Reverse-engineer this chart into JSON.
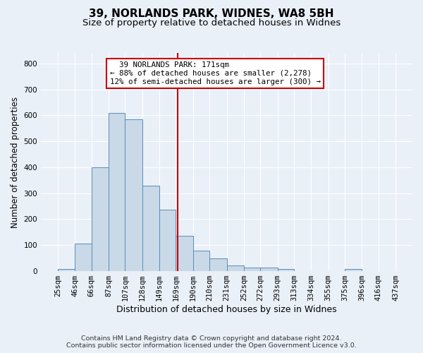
{
  "title1": "39, NORLANDS PARK, WIDNES, WA8 5BH",
  "title2": "Size of property relative to detached houses in Widnes",
  "xlabel": "Distribution of detached houses by size in Widnes",
  "ylabel": "Number of detached properties",
  "footer1": "Contains HM Land Registry data © Crown copyright and database right 2024.",
  "footer2": "Contains public sector information licensed under the Open Government Licence v3.0.",
  "bin_edges": [
    25,
    46,
    66,
    87,
    107,
    128,
    149,
    169,
    190,
    210,
    231,
    252,
    272,
    293,
    313,
    334,
    355,
    375,
    396,
    416,
    437
  ],
  "bar_heights": [
    8,
    105,
    400,
    610,
    585,
    328,
    238,
    135,
    78,
    50,
    22,
    15,
    15,
    8,
    0,
    0,
    0,
    8,
    0,
    0
  ],
  "bar_facecolor": "#c9d9e8",
  "bar_edgecolor": "#5b8db8",
  "property_size": 171,
  "vline_color": "#cc0000",
  "annotation_text": "  39 NORLANDS PARK: 171sqm\n← 88% of detached houses are smaller (2,278)\n12% of semi-detached houses are larger (300) →",
  "annotation_box_edgecolor": "#cc0000",
  "annotation_box_facecolor": "#ffffff",
  "ylim": [
    0,
    840
  ],
  "yticks": [
    0,
    100,
    200,
    300,
    400,
    500,
    600,
    700,
    800
  ],
  "background_color": "#eaf0f8",
  "grid_color": "#ffffff",
  "title1_fontsize": 11,
  "title2_fontsize": 9.5,
  "xlabel_fontsize": 9,
  "ylabel_fontsize": 8.5,
  "tick_fontsize": 7.5,
  "footer_fontsize": 6.8
}
